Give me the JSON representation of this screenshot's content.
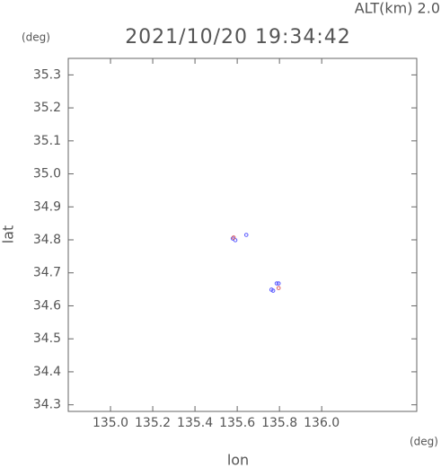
{
  "chart_data": {
    "type": "scatter",
    "title": "2021/10/20 19:34:42",
    "subtitle": "ALT(km) 2.0",
    "y_unit": "(deg)",
    "x_unit": "(deg)",
    "xlabel": "lon",
    "ylabel": "lat",
    "xlim": [
      134.8,
      136.45
    ],
    "ylim": [
      34.28,
      35.35
    ],
    "xticks": [
      {
        "value": 135.0,
        "label": "135.0"
      },
      135.2,
      135.4,
      135.6,
      135.8,
      {
        "value": 136.0,
        "label": "136.0"
      }
    ],
    "yticks": [
      34.3,
      34.4,
      34.5,
      34.6,
      34.7,
      34.8,
      34.9,
      {
        "value": 35.0,
        "label": "35.0"
      },
      35.1,
      35.2,
      35.3
    ],
    "series": [
      {
        "color": "#5a5aff",
        "x": [
          135.579,
          135.591,
          135.643,
          135.762,
          135.77,
          135.787,
          135.796
        ],
        "values": [
          34.804,
          34.799,
          34.815,
          34.649,
          34.646,
          34.668,
          34.668
        ]
      },
      {
        "color": "#e06060",
        "x": [
          135.583,
          135.796
        ],
        "values": [
          34.807,
          34.654
        ]
      }
    ]
  }
}
